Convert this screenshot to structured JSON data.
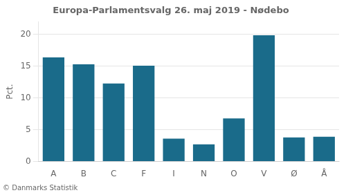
{
  "chart_data": {
    "type": "bar",
    "title": "Europa-Parlamentsvalg 26. maj 2019 - Nødebo",
    "ylabel": "Pct.",
    "footer": "© Danmarks Statistik",
    "categories": [
      "A",
      "B",
      "C",
      "F",
      "I",
      "N",
      "O",
      "V",
      "Ø",
      "Å"
    ],
    "values": [
      16.4,
      15.3,
      12.3,
      15.1,
      3.6,
      2.7,
      6.8,
      19.9,
      3.8,
      3.9
    ],
    "color": "#1a6b8a",
    "ylim": [
      0,
      22
    ],
    "yticks": [
      0,
      5,
      10,
      15,
      20
    ],
    "grid": true
  }
}
